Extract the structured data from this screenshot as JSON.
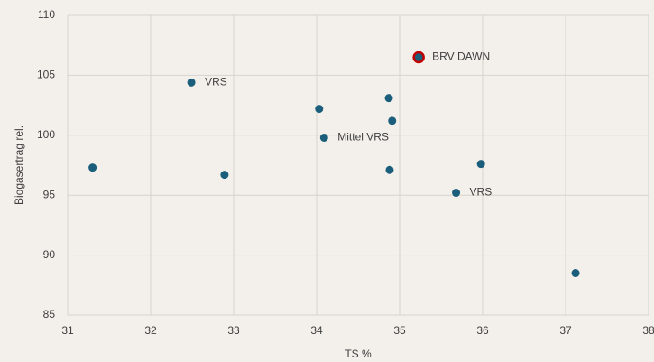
{
  "chart_data": {
    "type": "scatter",
    "xlabel": "TS %",
    "ylabel": "Biogasertrag rel.",
    "series": [
      {
        "color": "#1b5e7b",
        "x": [
          31.3,
          32.49,
          32.89,
          34.03,
          34.09,
          34.87,
          34.91,
          34.88,
          35.98,
          35.68,
          37.12
        ],
        "values": [
          97.3,
          104.4,
          96.7,
          102.2,
          99.8,
          103.1,
          101.2,
          97.1,
          97.6,
          95.2,
          88.5
        ],
        "point_labels": [
          null,
          "VRS",
          null,
          null,
          "Mittel VRS",
          null,
          null,
          null,
          null,
          "VRS",
          null
        ]
      },
      {
        "color": "#1b5e7b",
        "edgecolor": "#c00000",
        "x": [
          35.23
        ],
        "values": [
          106.5
        ],
        "point_labels": [
          "BRV DAWN"
        ]
      }
    ],
    "xlim": [
      31,
      38
    ],
    "xticks": [
      31,
      32,
      33,
      34,
      35,
      36,
      37,
      38
    ],
    "ylim": [
      85,
      110
    ],
    "yticks": [
      85,
      90,
      95,
      100,
      105,
      110
    ],
    "grid": true
  }
}
